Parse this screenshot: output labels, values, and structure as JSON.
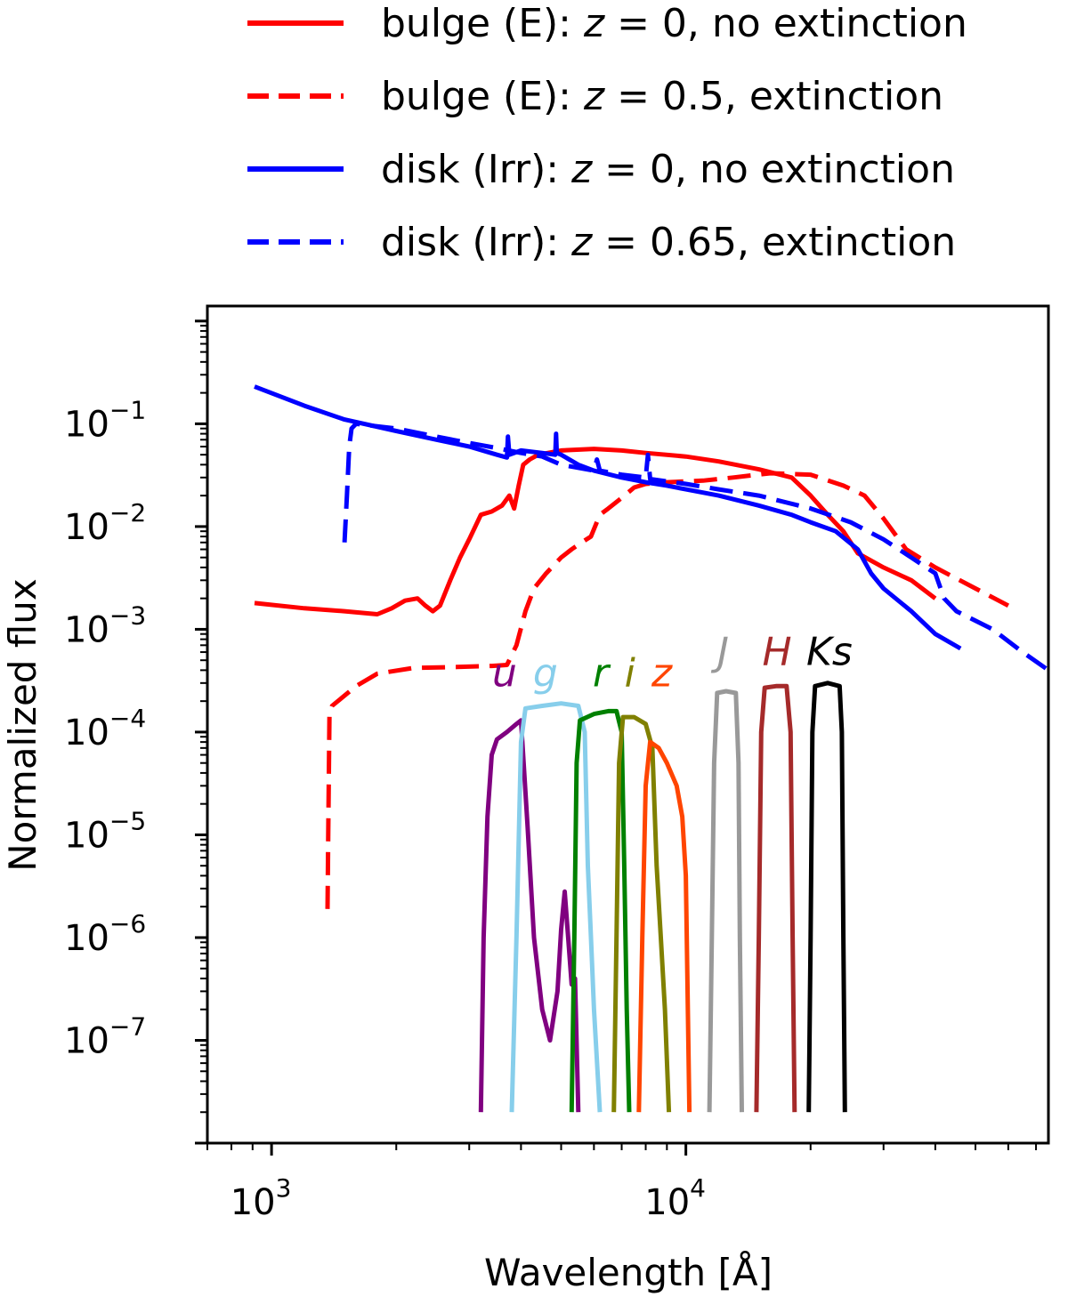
{
  "chart_data": {
    "type": "line",
    "title": "",
    "xlabel": "Wavelength [Å]",
    "ylabel": "Normalized flux",
    "xscale": "log",
    "yscale": "log",
    "xlim": [
      700,
      75000
    ],
    "ylim": [
      1e-08,
      1.4
    ],
    "grid": false,
    "legend_position": "top",
    "x_ticks": [
      {
        "value": 1000,
        "base": "10",
        "exp": "3"
      },
      {
        "value": 10000,
        "base": "10",
        "exp": "4"
      }
    ],
    "y_ticks": [
      {
        "value": 0.1,
        "base": "10",
        "exp": "−1"
      },
      {
        "value": 0.01,
        "base": "10",
        "exp": "−2"
      },
      {
        "value": 0.001,
        "base": "10",
        "exp": "−3"
      },
      {
        "value": 0.0001,
        "base": "10",
        "exp": "−4"
      },
      {
        "value": 1e-05,
        "base": "10",
        "exp": "−5"
      },
      {
        "value": 1e-06,
        "base": "10",
        "exp": "−6"
      },
      {
        "value": 1e-07,
        "base": "10",
        "exp": "−7"
      }
    ],
    "series": [
      {
        "name": "bulge (E): z = 0, no extinction",
        "legend_prefix": "bulge (E): ",
        "legend_var": "z",
        "legend_suffix": " = 0, no extinction",
        "color": "#ff0000",
        "dash": "solid",
        "points": [
          [
            910,
            0.0018
          ],
          [
            1200,
            0.0016
          ],
          [
            1500,
            0.0015
          ],
          [
            1800,
            0.0014
          ],
          [
            1950,
            0.0016
          ],
          [
            2100,
            0.0019
          ],
          [
            2250,
            0.002
          ],
          [
            2350,
            0.0017
          ],
          [
            2450,
            0.0015
          ],
          [
            2550,
            0.0017
          ],
          [
            2700,
            0.003
          ],
          [
            2850,
            0.005
          ],
          [
            3000,
            0.0075
          ],
          [
            3200,
            0.013
          ],
          [
            3400,
            0.014
          ],
          [
            3600,
            0.016
          ],
          [
            3750,
            0.02
          ],
          [
            3850,
            0.015
          ],
          [
            3950,
            0.025
          ],
          [
            4050,
            0.04
          ],
          [
            4200,
            0.045
          ],
          [
            4400,
            0.05
          ],
          [
            5000,
            0.055
          ],
          [
            6000,
            0.057
          ],
          [
            7000,
            0.055
          ],
          [
            8000,
            0.052
          ],
          [
            10000,
            0.048
          ],
          [
            12000,
            0.043
          ],
          [
            15000,
            0.036
          ],
          [
            18000,
            0.03
          ],
          [
            20000,
            0.02
          ],
          [
            22000,
            0.013
          ],
          [
            24000,
            0.009
          ],
          [
            26000,
            0.0055
          ],
          [
            30000,
            0.004
          ],
          [
            35000,
            0.003
          ],
          [
            40000,
            0.002
          ]
        ]
      },
      {
        "name": "bulge (E): z = 0.5, extinction",
        "legend_prefix": "bulge (E): ",
        "legend_var": "z",
        "legend_suffix": " = 0.5, extinction",
        "color": "#ff0000",
        "dash": "dashed",
        "points": [
          [
            1365,
            1.9e-06
          ],
          [
            1370,
            1e-05
          ],
          [
            1380,
            0.00015
          ],
          [
            1400,
            0.00018
          ],
          [
            1600,
            0.00028
          ],
          [
            1800,
            0.00037
          ],
          [
            2200,
            0.00042
          ],
          [
            2800,
            0.00043
          ],
          [
            3400,
            0.00044
          ],
          [
            3700,
            0.00045
          ],
          [
            3900,
            0.0007
          ],
          [
            4100,
            0.0015
          ],
          [
            4300,
            0.0025
          ],
          [
            4600,
            0.0035
          ],
          [
            5000,
            0.005
          ],
          [
            5300,
            0.006
          ],
          [
            5600,
            0.007
          ],
          [
            5900,
            0.008
          ],
          [
            6200,
            0.013
          ],
          [
            6500,
            0.015
          ],
          [
            7000,
            0.019
          ],
          [
            7500,
            0.024
          ],
          [
            8000,
            0.026
          ],
          [
            9000,
            0.027
          ],
          [
            11000,
            0.028
          ],
          [
            13000,
            0.03
          ],
          [
            16000,
            0.033
          ],
          [
            20000,
            0.032
          ],
          [
            24000,
            0.025
          ],
          [
            27000,
            0.02
          ],
          [
            30000,
            0.012
          ],
          [
            34000,
            0.006
          ],
          [
            40000,
            0.004
          ],
          [
            50000,
            0.0025
          ],
          [
            60000,
            0.0017
          ]
        ]
      },
      {
        "name": "disk (Irr): z = 0, no extinction",
        "legend_prefix": "disk (Irr): ",
        "legend_var": "z",
        "legend_suffix": " = 0, no extinction",
        "color": "#0000ff",
        "dash": "solid",
        "points": [
          [
            910,
            0.23
          ],
          [
            1200,
            0.15
          ],
          [
            1500,
            0.11
          ],
          [
            2000,
            0.085
          ],
          [
            2500,
            0.07
          ],
          [
            3000,
            0.06
          ],
          [
            3500,
            0.05
          ],
          [
            3700,
            0.047
          ],
          [
            3720,
            0.075
          ],
          [
            3750,
            0.05
          ],
          [
            4000,
            0.055
          ],
          [
            4500,
            0.052
          ],
          [
            4840,
            0.05
          ],
          [
            4860,
            0.08
          ],
          [
            4880,
            0.052
          ],
          [
            5000,
            0.05
          ],
          [
            5500,
            0.04
          ],
          [
            6000,
            0.035
          ],
          [
            7000,
            0.03
          ],
          [
            8000,
            0.027
          ],
          [
            9000,
            0.025
          ],
          [
            10000,
            0.023
          ],
          [
            12000,
            0.02
          ],
          [
            15000,
            0.016
          ],
          [
            18000,
            0.013
          ],
          [
            20000,
            0.011
          ],
          [
            23000,
            0.009
          ],
          [
            26000,
            0.006
          ],
          [
            28000,
            0.0035
          ],
          [
            30000,
            0.0025
          ],
          [
            35000,
            0.0015
          ],
          [
            40000,
            0.0009
          ],
          [
            46000,
            0.00065
          ]
        ]
      },
      {
        "name": "disk (Irr): z = 0.65, extinction",
        "legend_prefix": "disk (Irr): ",
        "legend_var": "z",
        "legend_suffix": " = 0.65, extinction",
        "color": "#0000ff",
        "dash": "dashed",
        "points": [
          [
            1500,
            0.007
          ],
          [
            1520,
            0.02
          ],
          [
            1540,
            0.06
          ],
          [
            1560,
            0.09
          ],
          [
            1600,
            0.1
          ],
          [
            2000,
            0.09
          ],
          [
            2500,
            0.075
          ],
          [
            3000,
            0.065
          ],
          [
            3500,
            0.058
          ],
          [
            4000,
            0.052
          ],
          [
            4500,
            0.048
          ],
          [
            5000,
            0.04
          ],
          [
            6000,
            0.035
          ],
          [
            6100,
            0.045
          ],
          [
            6200,
            0.035
          ],
          [
            7000,
            0.032
          ],
          [
            8000,
            0.03
          ],
          [
            8100,
            0.05
          ],
          [
            8200,
            0.029
          ],
          [
            10000,
            0.026
          ],
          [
            12000,
            0.023
          ],
          [
            15000,
            0.02
          ],
          [
            20000,
            0.015
          ],
          [
            25000,
            0.011
          ],
          [
            30000,
            0.0075
          ],
          [
            35000,
            0.005
          ],
          [
            40000,
            0.0035
          ],
          [
            42000,
            0.002
          ],
          [
            45000,
            0.0015
          ],
          [
            55000,
            0.001
          ],
          [
            65000,
            0.0006
          ],
          [
            75000,
            0.0004
          ]
        ]
      }
    ],
    "filters": [
      {
        "band": "u",
        "color": "#800080",
        "label_x": 3650,
        "label_y": 0.00028,
        "points": [
          [
            3200,
            2e-08
          ],
          [
            3250,
            1e-06
          ],
          [
            3320,
            1.5e-05
          ],
          [
            3400,
            6e-05
          ],
          [
            3500,
            8.5e-05
          ],
          [
            3700,
            0.0001
          ],
          [
            3900,
            0.00012
          ],
          [
            4000,
            0.00013
          ],
          [
            4150,
            1.2e-05
          ],
          [
            4300,
            1e-06
          ],
          [
            4500,
            2e-07
          ],
          [
            4700,
            1e-07
          ],
          [
            4900,
            3e-07
          ],
          [
            5000,
            1.2e-06
          ],
          [
            5100,
            2.8e-06
          ],
          [
            5200,
            1e-06
          ],
          [
            5300,
            3.5e-07
          ],
          [
            5400,
            4e-07
          ],
          [
            5500,
            2e-08
          ]
        ]
      },
      {
        "band": "g",
        "color": "#87ceeb",
        "label_x": 4580,
        "label_y": 0.00028,
        "points": [
          [
            3800,
            2e-08
          ],
          [
            3900,
            1e-06
          ],
          [
            4000,
            8e-05
          ],
          [
            4100,
            0.00017
          ],
          [
            4500,
            0.00018
          ],
          [
            5000,
            0.00019
          ],
          [
            5500,
            0.00018
          ],
          [
            5700,
            0.0001
          ],
          [
            5800,
            5e-06
          ],
          [
            5900,
            1e-06
          ],
          [
            6000,
            2e-07
          ],
          [
            6200,
            2e-08
          ]
        ]
      },
      {
        "band": "r",
        "color": "#008000",
        "label_x": 6230,
        "label_y": 0.00028,
        "points": [
          [
            5300,
            2e-08
          ],
          [
            5380,
            1e-06
          ],
          [
            5450,
            5e-05
          ],
          [
            5550,
            0.00013
          ],
          [
            6000,
            0.00015
          ],
          [
            6500,
            0.00016
          ],
          [
            6800,
            0.00016
          ],
          [
            7000,
            0.0001
          ],
          [
            7100,
            5e-06
          ],
          [
            7200,
            2e-07
          ],
          [
            7300,
            2e-08
          ]
        ]
      },
      {
        "band": "i",
        "color": "#808000",
        "label_x": 7330,
        "label_y": 0.00028,
        "points": [
          [
            6700,
            2e-08
          ],
          [
            6800,
            1e-06
          ],
          [
            6900,
            5e-05
          ],
          [
            7050,
            0.00014
          ],
          [
            7500,
            0.00014
          ],
          [
            8000,
            0.00012
          ],
          [
            8300,
            7e-05
          ],
          [
            8500,
            5e-06
          ],
          [
            8700,
            1e-06
          ],
          [
            8900,
            2e-07
          ],
          [
            9100,
            2e-08
          ]
        ]
      },
      {
        "band": "z",
        "color": "#ff4500",
        "label_x": 8750,
        "label_y": 0.00028,
        "points": [
          [
            7700,
            2e-08
          ],
          [
            7850,
            1e-06
          ],
          [
            8000,
            3e-05
          ],
          [
            8200,
            8e-05
          ],
          [
            8600,
            7e-05
          ],
          [
            9000,
            5e-05
          ],
          [
            9500,
            3e-05
          ],
          [
            9800,
            1.5e-05
          ],
          [
            10000,
            4e-06
          ],
          [
            10200,
            2e-08
          ]
        ]
      },
      {
        "band": "J",
        "color": "#999999",
        "label_x": 12300,
        "label_y": 0.00045,
        "points": [
          [
            11400,
            2e-08
          ],
          [
            11550,
            1e-06
          ],
          [
            11700,
            5e-05
          ],
          [
            11900,
            0.00024
          ],
          [
            12500,
            0.00025
          ],
          [
            13200,
            0.00024
          ],
          [
            13400,
            5e-05
          ],
          [
            13500,
            1e-06
          ],
          [
            13650,
            2e-08
          ]
        ]
      },
      {
        "band": "H",
        "color": "#a52a2a",
        "label_x": 16600,
        "label_y": 0.00045,
        "points": [
          [
            14800,
            2e-08
          ],
          [
            15000,
            1e-06
          ],
          [
            15200,
            0.0001
          ],
          [
            15500,
            0.00027
          ],
          [
            16500,
            0.00028
          ],
          [
            17500,
            0.00028
          ],
          [
            17900,
            0.0001
          ],
          [
            18100,
            1e-06
          ],
          [
            18300,
            2e-08
          ]
        ]
      },
      {
        "band": "Ks",
        "color": "#000000",
        "label_x": 22200,
        "label_y": 0.00045,
        "points": [
          [
            19800,
            2e-08
          ],
          [
            20000,
            1e-06
          ],
          [
            20200,
            0.0001
          ],
          [
            20500,
            0.00028
          ],
          [
            22000,
            0.0003
          ],
          [
            23500,
            0.00028
          ],
          [
            23800,
            0.0001
          ],
          [
            24000,
            1e-06
          ],
          [
            24200,
            2e-08
          ]
        ]
      }
    ]
  }
}
